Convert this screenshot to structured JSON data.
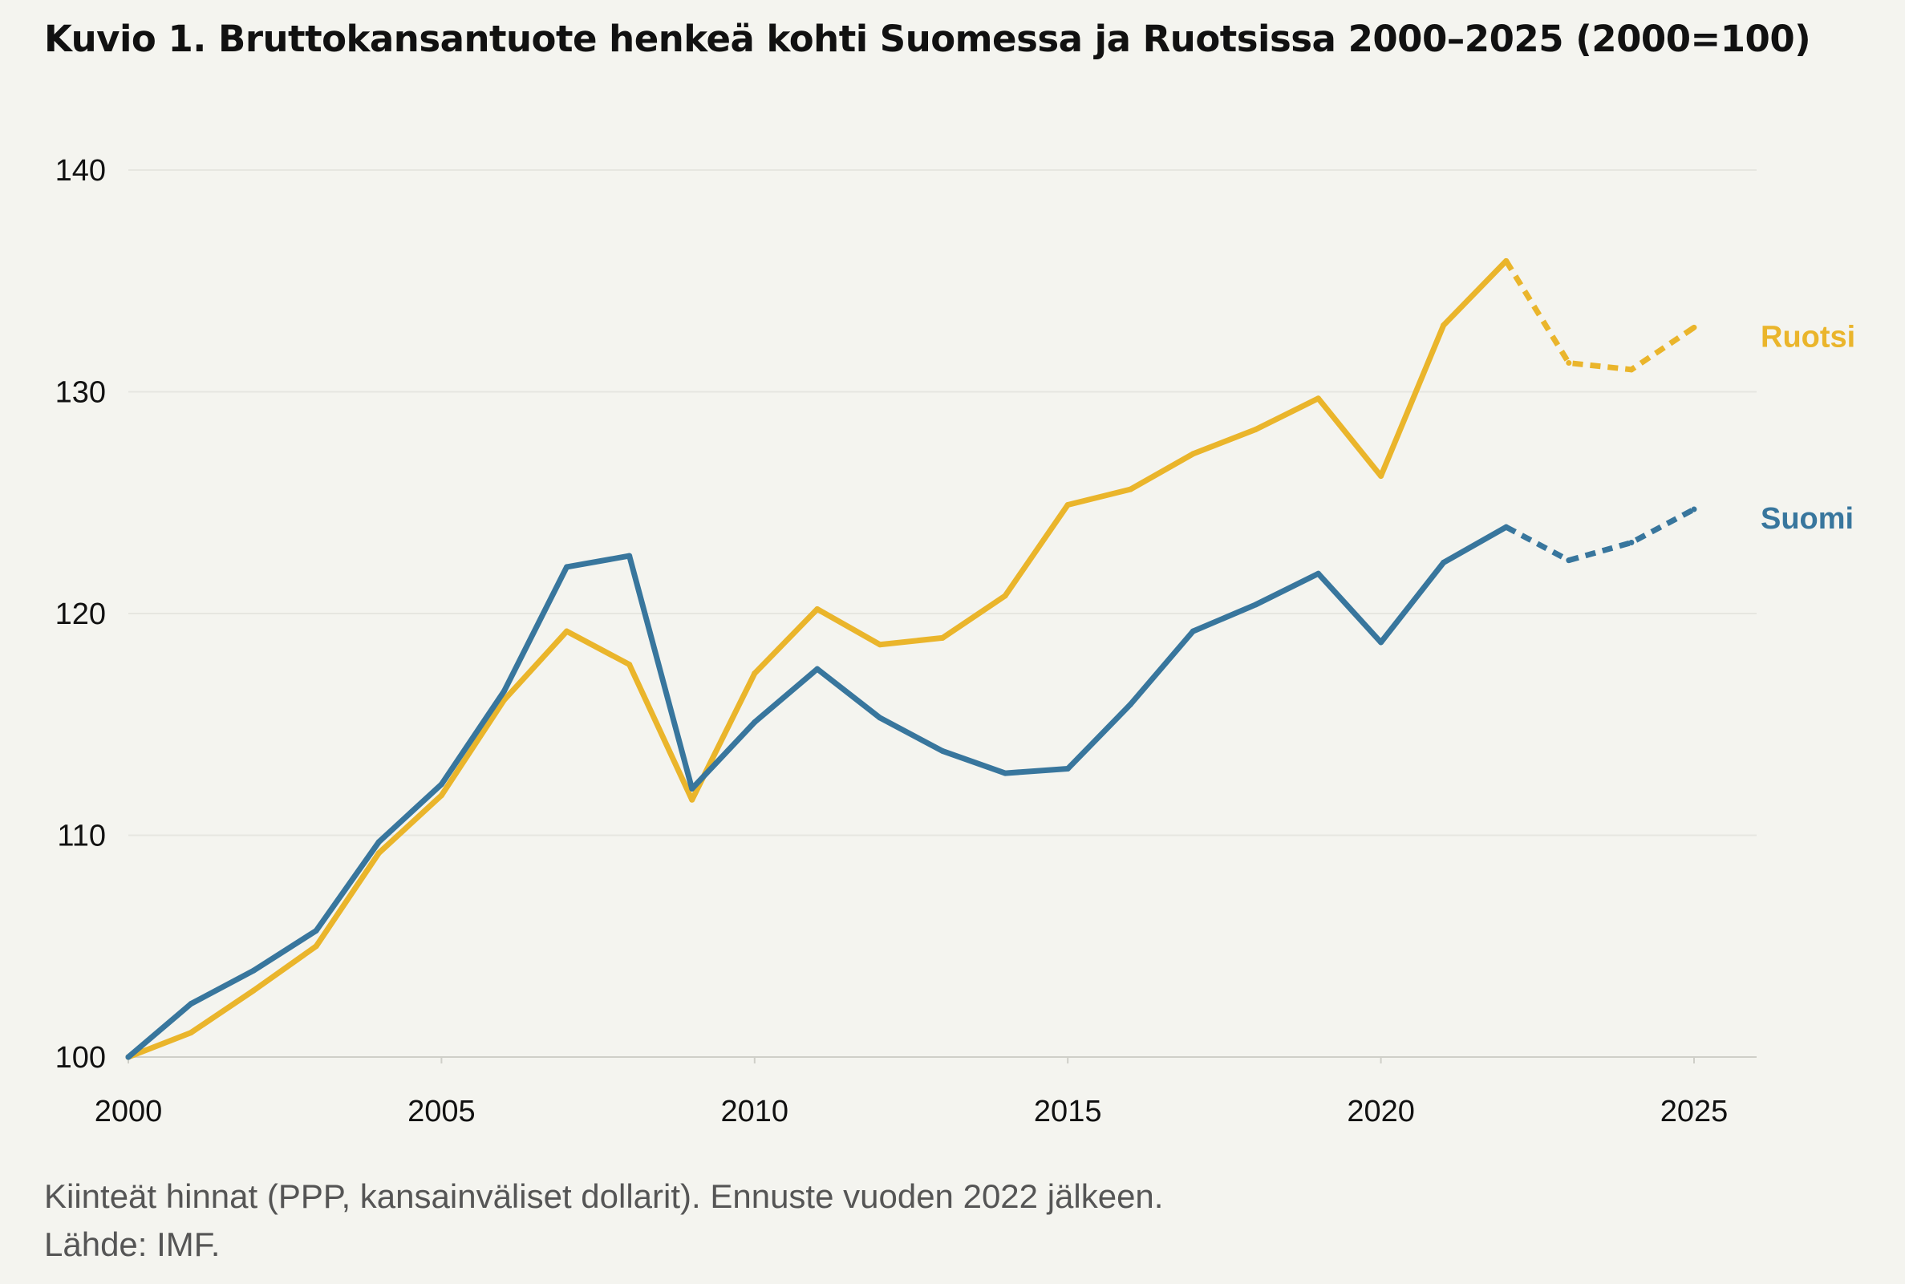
{
  "title": "Kuvio 1. Bruttokansantuote henkeä kohti Suomessa ja Ruotsissa 2000–2025 (2000=100)",
  "footnote": {
    "line1": "Kiinteät hinnat (PPP, kansainväliset dollarit). Ennuste vuoden 2022 jälkeen.",
    "line2": "Lähde: IMF."
  },
  "chart_data": {
    "type": "line",
    "x": [
      2000,
      2001,
      2002,
      2003,
      2004,
      2005,
      2006,
      2007,
      2008,
      2009,
      2010,
      2011,
      2012,
      2013,
      2014,
      2015,
      2016,
      2017,
      2018,
      2019,
      2020,
      2021,
      2022,
      2023,
      2024,
      2025
    ],
    "xticks": [
      2000,
      2005,
      2010,
      2015,
      2020,
      2025
    ],
    "yticks": [
      100,
      110,
      120,
      130,
      140
    ],
    "xlim": [
      2000,
      2026
    ],
    "ylim": [
      100,
      140
    ],
    "forecast_from": 2022,
    "grid": true,
    "series": [
      {
        "name": "Ruotsi",
        "color": "#eab52b",
        "values": [
          100,
          101.1,
          103.0,
          105.0,
          109.2,
          111.8,
          116.1,
          119.2,
          117.7,
          111.6,
          117.3,
          120.2,
          118.6,
          118.9,
          120.8,
          124.9,
          125.6,
          127.2,
          128.3,
          129.7,
          126.2,
          133.0,
          135.9,
          131.3,
          131.0,
          132.9
        ]
      },
      {
        "name": "Suomi",
        "color": "#38769d",
        "values": [
          100,
          102.4,
          103.9,
          105.7,
          109.7,
          112.3,
          116.5,
          122.1,
          122.6,
          112.1,
          115.1,
          117.5,
          115.3,
          113.8,
          112.8,
          113.0,
          115.9,
          119.2,
          120.4,
          121.8,
          118.7,
          122.3,
          123.9,
          122.4,
          123.2,
          124.7
        ]
      }
    ]
  }
}
